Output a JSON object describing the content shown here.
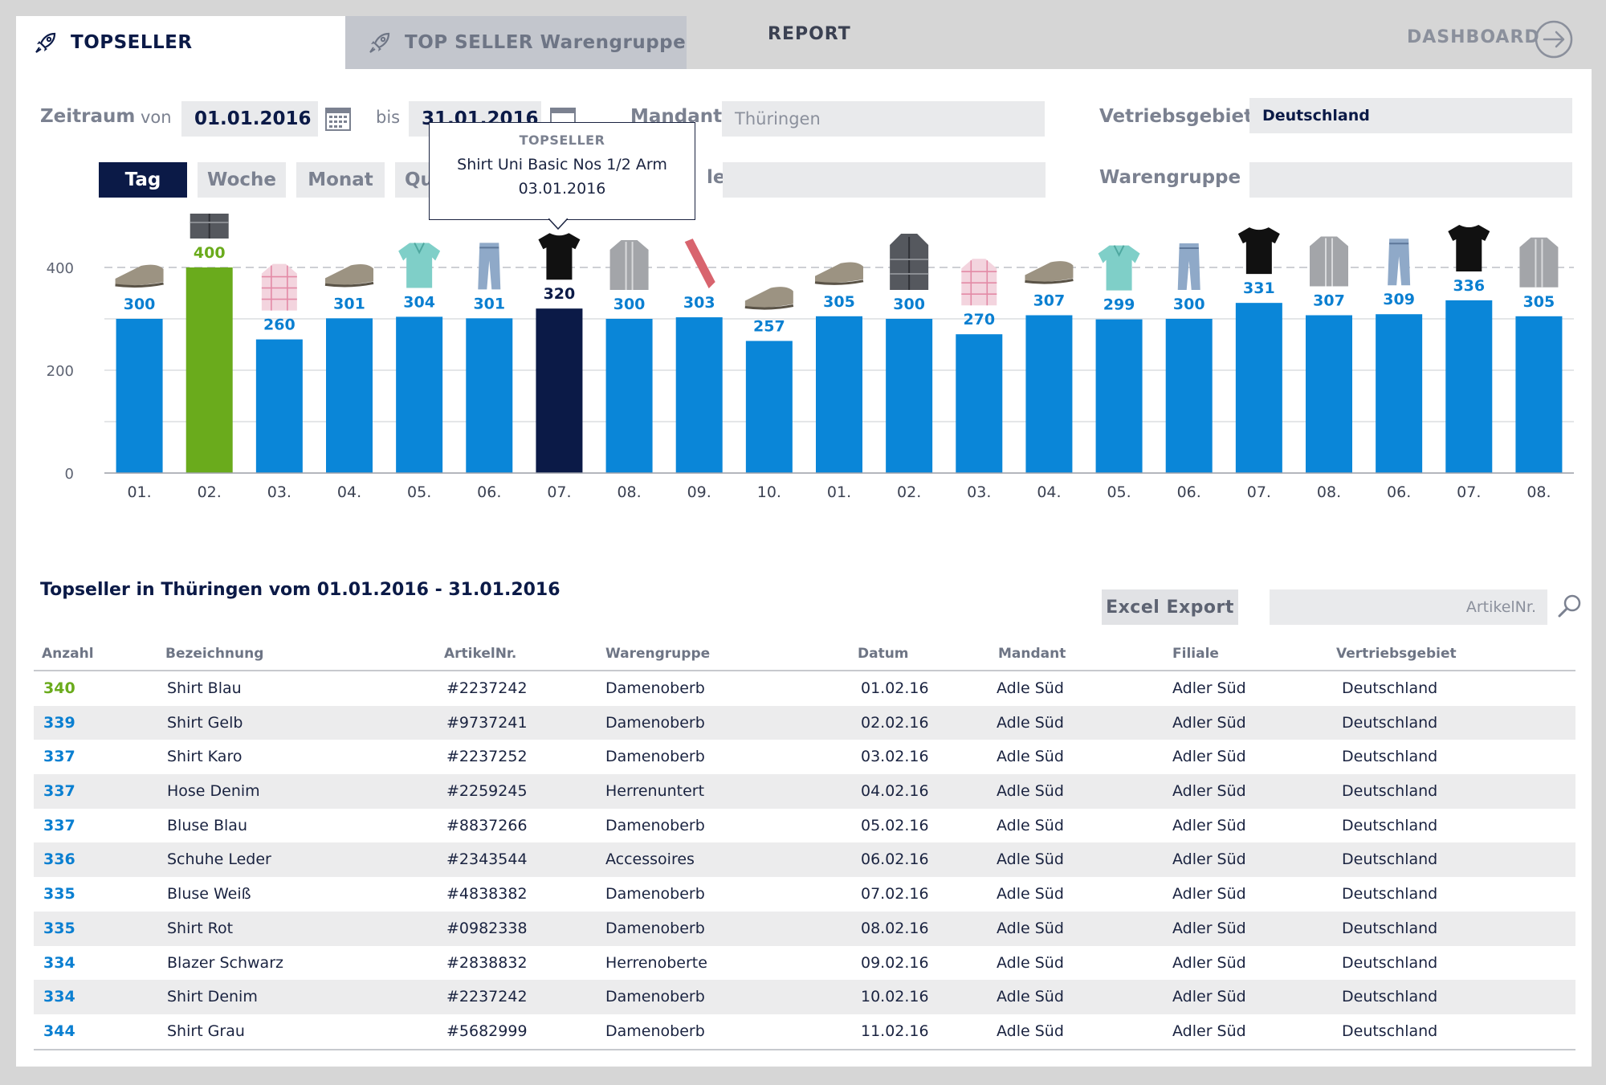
{
  "tabs": {
    "active": "TOPSELLER",
    "second": "TOP SELLER Warengruppe",
    "report": "REPORT",
    "dashboard": "DASHBOARD"
  },
  "filters": {
    "zeitraum_label": "Zeitraum",
    "von_label": "von",
    "von_value": "01.01.2016",
    "bis_label": "bis",
    "bis_value": "31.01.2016",
    "mandant_label": "Mandant",
    "mandant_value": "Thüringen",
    "vertriebsgebiet_label": "Vetriebsgebiet",
    "vertriebsgebiet_value": "Deutschland",
    "filiale_label_fragment": "le",
    "warengruppe_label": "Warengruppe",
    "warengruppe_value": ""
  },
  "periods": [
    "Tag",
    "Woche",
    "Monat",
    "Qu"
  ],
  "tooltip": {
    "title": "TOPSELLER",
    "product": "Shirt Uni Basic Nos 1/2 Arm",
    "date": "03.01.2016"
  },
  "colors": {
    "bar": "#0a86d8",
    "bar_highlight_green": "#6aab1c",
    "bar_selected": "#0b1a47",
    "navy": "#0b1a47",
    "label_blue": "#0a7fd1",
    "label_green": "#6aab1c"
  },
  "chart_data": {
    "type": "bar",
    "categories": [
      "01.",
      "02.",
      "03.",
      "04.",
      "05.",
      "06.",
      "07.",
      "08.",
      "09.",
      "10.",
      "01.",
      "02.",
      "03.",
      "04.",
      "05.",
      "06.",
      "07.",
      "08.",
      "06.",
      "07.",
      "08."
    ],
    "values": [
      300,
      400,
      260,
      301,
      304,
      301,
      320,
      300,
      303,
      257,
      305,
      300,
      270,
      307,
      299,
      300,
      331,
      307,
      309,
      336,
      305
    ],
    "product_icons": [
      "shoe-icon",
      "jacket-icon",
      "checked-shirt-icon",
      "shoe-icon",
      "polo-shirt-icon",
      "jeans-icon",
      "tshirt-icon",
      "cardigan-icon",
      "tie-icon",
      "shoe-icon",
      "shoe-icon",
      "jacket-icon",
      "checked-shirt-icon",
      "shoe-icon",
      "polo-shirt-icon",
      "jeans-icon",
      "tshirt-icon",
      "cardigan-icon",
      "jeans-icon",
      "tshirt-icon",
      "cardigan-icon"
    ],
    "highlight_index": 1,
    "selected_index": 6,
    "yticks": [
      0,
      200,
      400
    ],
    "ylim": [
      0,
      400
    ],
    "grid": true,
    "title": "",
    "xlabel": "",
    "ylabel": ""
  },
  "table": {
    "title": "Topseller in Thüringen vom 01.01.2016 - 31.01.2016",
    "excel_label": "Excel Export",
    "search_placeholder": "ArtikelNr.",
    "headers": [
      "Anzahl",
      "Bezeichnung",
      "ArtikelNr.",
      "Warengruppe",
      "Datum",
      "Mandant",
      "Filiale",
      "Vertriebsgebiet"
    ],
    "rows": [
      [
        "340",
        "Shirt Blau",
        "#2237242",
        "Damenoberb",
        "01.02.16",
        "Adle Süd",
        "Adler Süd",
        "Deutschland"
      ],
      [
        "339",
        "Shirt Gelb",
        "#9737241",
        "Damenoberb",
        "02.02.16",
        "Adle Süd",
        "Adler Süd",
        "Deutschland"
      ],
      [
        "337",
        "Shirt Karo",
        "#2237252",
        "Damenoberb",
        "03.02.16",
        "Adle Süd",
        "Adler Süd",
        "Deutschland"
      ],
      [
        "337",
        "Hose Denim",
        "#2259245",
        "Herrenuntert",
        "04.02.16",
        "Adle Süd",
        "Adler Süd",
        "Deutschland"
      ],
      [
        "337",
        "Bluse Blau",
        "#8837266",
        "Damenoberb",
        "05.02.16",
        "Adle Süd",
        "Adler Süd",
        "Deutschland"
      ],
      [
        "336",
        "Schuhe Leder",
        "#2343544",
        "Accessoires",
        "06.02.16",
        "Adle Süd",
        "Adler Süd",
        "Deutschland"
      ],
      [
        "335",
        "Bluse Weiß",
        "#4838382",
        "Damenoberb",
        "07.02.16",
        "Adle Süd",
        "Adler Süd",
        "Deutschland"
      ],
      [
        "335",
        "Shirt Rot",
        "#0982338",
        "Damenoberb",
        "08.02.16",
        "Adle Süd",
        "Adler Süd",
        "Deutschland"
      ],
      [
        "334",
        "Blazer Schwarz",
        "#2838832",
        "Herrenoberte",
        "09.02.16",
        "Adle Süd",
        "Adler Süd",
        "Deutschland"
      ],
      [
        "334",
        "Shirt Denim",
        "#2237242",
        "Damenoberb",
        "10.02.16",
        "Adle Süd",
        "Adler Süd",
        "Deutschland"
      ],
      [
        "344",
        "Shirt Grau",
        "#5682999",
        "Damenoberb",
        "11.02.16",
        "Adle Süd",
        "Adler Süd",
        "Deutschland"
      ]
    ]
  }
}
